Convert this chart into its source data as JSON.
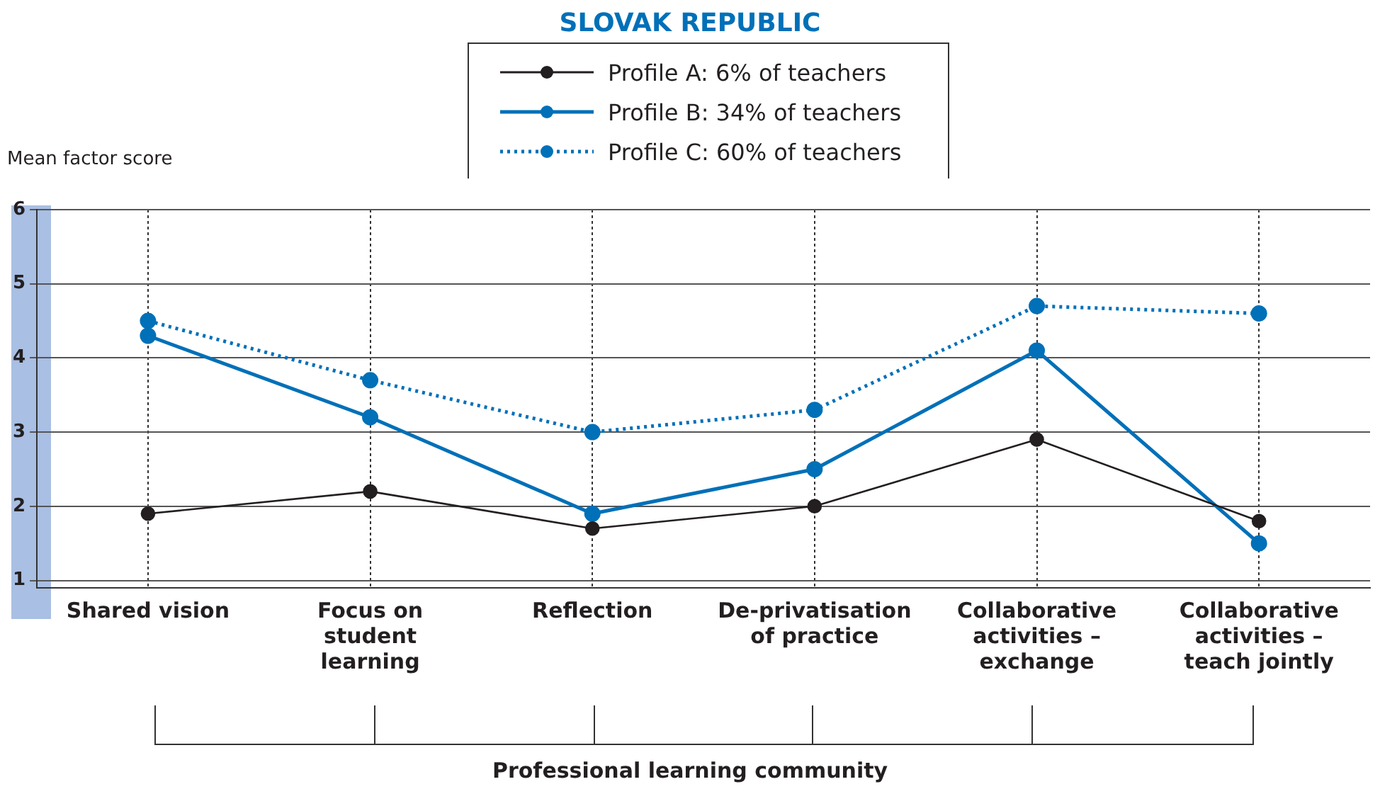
{
  "chart_data": {
    "type": "line",
    "title": "SLOVAK REPUBLIC",
    "ylabel": "Mean factor score",
    "xlabel": "Professional learning community",
    "categories": [
      "Shared vision",
      "Focus on student learning",
      "Reflection",
      "De-privatisation of practice",
      "Collaborative activities – exchange",
      "Collaborative activities – teach jointly"
    ],
    "series": [
      {
        "name": "Profile A:  6% of teachers",
        "color": "#231f20",
        "line_style": "solid",
        "values": [
          1.9,
          2.2,
          1.7,
          2.0,
          2.9,
          1.8
        ]
      },
      {
        "name": "Profile B:  34% of teachers",
        "color": "#0070b8",
        "line_style": "solid",
        "values": [
          4.3,
          3.2,
          1.9,
          2.5,
          4.1,
          1.5
        ]
      },
      {
        "name": "Profile C:  60% of teachers",
        "color": "#0070b8",
        "line_style": "dotted",
        "values": [
          4.5,
          3.7,
          3.0,
          3.3,
          4.7,
          4.6
        ]
      }
    ],
    "ylim": [
      0.9,
      6
    ],
    "yticks": [
      1,
      2,
      3,
      4,
      5,
      6
    ],
    "grid": true,
    "legend": "top",
    "marker": "circle"
  }
}
